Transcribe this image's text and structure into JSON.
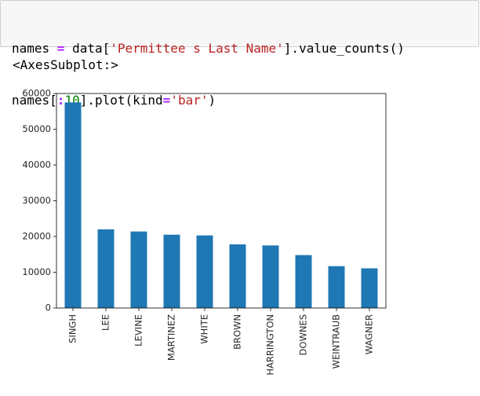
{
  "code_cell": {
    "line1": {
      "var": "names ",
      "op": "=",
      "pre": " data[",
      "str": "'Permittee s Last Name'",
      "post": "].value_counts()"
    },
    "line2": {
      "pre": "names[",
      "colon": ":",
      "num": "10",
      "mid": "].plot(kind",
      "op": "=",
      "str": "'bar'",
      "post": ")"
    }
  },
  "output": {
    "repr": "<AxesSubplot:>"
  },
  "colors": {
    "bar": "#1f77b4",
    "axes": "#000000",
    "text": "#262626"
  },
  "chart_data": {
    "type": "bar",
    "categories": [
      "SINGH",
      "LEE",
      "LEVINE",
      "MARTINEZ",
      "WHITE",
      "BROWN",
      "HARRINGTON",
      "DOWNES",
      "WEINTRAUB",
      "WAGNER"
    ],
    "values": [
      57500,
      22000,
      21400,
      20500,
      20300,
      17800,
      17500,
      14800,
      11700,
      11100
    ],
    "ylim": [
      0,
      60000
    ],
    "yticks": [
      0,
      10000,
      20000,
      30000,
      40000,
      50000,
      60000
    ],
    "grid": false,
    "legend": false
  }
}
